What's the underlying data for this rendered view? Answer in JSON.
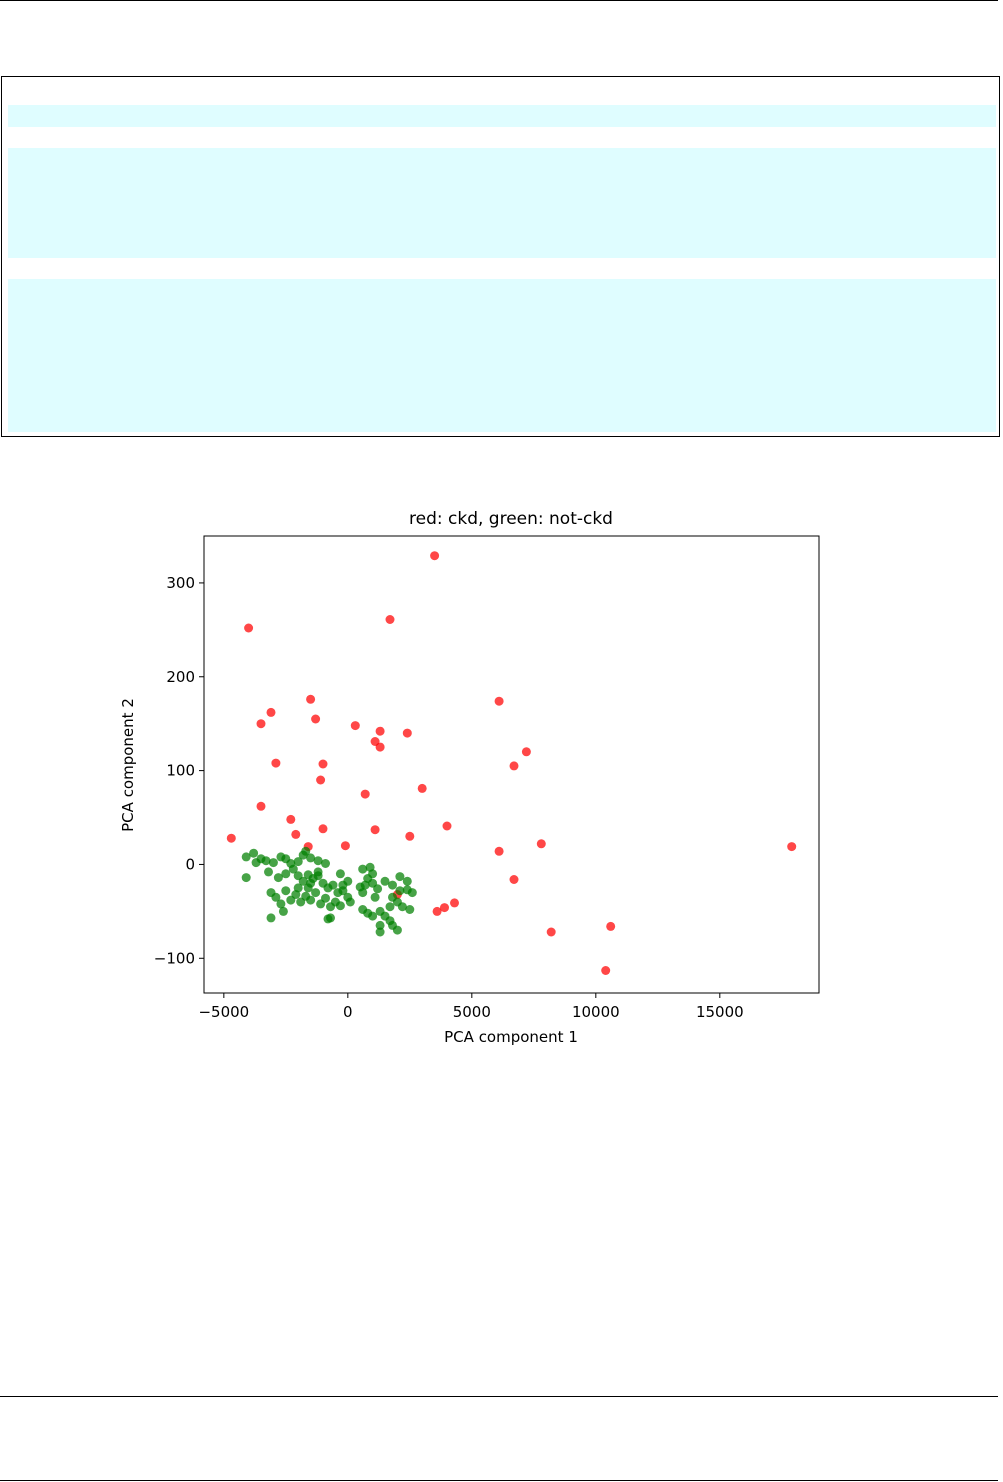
{
  "chart_data": {
    "type": "scatter",
    "title": "red: ckd, green: not-ckd",
    "xlabel": "PCA component 1",
    "ylabel": "PCA component 2",
    "xlim": [
      -5800,
      19000
    ],
    "ylim": [
      -137,
      350
    ],
    "xticks": [
      -5000,
      0,
      5000,
      10000,
      15000
    ],
    "xtick_labels": [
      "−5000",
      "0",
      "5000",
      "10000",
      "15000"
    ],
    "yticks": [
      -100,
      0,
      100,
      200,
      300
    ],
    "ytick_labels": [
      "−100",
      "0",
      "100",
      "200",
      "300"
    ],
    "grid": false,
    "series": [
      {
        "name": "ckd",
        "color": "#ff0000",
        "points": [
          [
            3500,
            329
          ],
          [
            -4000,
            252
          ],
          [
            1700,
            261
          ],
          [
            6100,
            174
          ],
          [
            -1500,
            176
          ],
          [
            -3100,
            162
          ],
          [
            -1300,
            155
          ],
          [
            -3500,
            150
          ],
          [
            300,
            148
          ],
          [
            1300,
            142
          ],
          [
            2400,
            140
          ],
          [
            1100,
            131
          ],
          [
            1300,
            125
          ],
          [
            7200,
            120
          ],
          [
            -2900,
            108
          ],
          [
            -1000,
            107
          ],
          [
            6700,
            105
          ],
          [
            -1100,
            90
          ],
          [
            3000,
            81
          ],
          [
            700,
            75
          ],
          [
            -3500,
            62
          ],
          [
            -2300,
            48
          ],
          [
            4000,
            41
          ],
          [
            -1000,
            38
          ],
          [
            1100,
            37
          ],
          [
            -2100,
            32
          ],
          [
            2500,
            30
          ],
          [
            -4700,
            28
          ],
          [
            7800,
            22
          ],
          [
            17900,
            19
          ],
          [
            -100,
            20
          ],
          [
            -1600,
            19
          ],
          [
            6100,
            14
          ],
          [
            6700,
            -16
          ],
          [
            4300,
            -41
          ],
          [
            3900,
            -46
          ],
          [
            3600,
            -50
          ],
          [
            10600,
            -66
          ],
          [
            8200,
            -72
          ],
          [
            10400,
            -113
          ],
          [
            2000,
            -32
          ]
        ]
      },
      {
        "name": "not-ckd",
        "color": "#008000",
        "points": [
          [
            -4100,
            8
          ],
          [
            -3800,
            12
          ],
          [
            -3500,
            6
          ],
          [
            -3300,
            4
          ],
          [
            -3000,
            2
          ],
          [
            -2700,
            8
          ],
          [
            -2500,
            6
          ],
          [
            -2300,
            1
          ],
          [
            -2000,
            3
          ],
          [
            -1800,
            10
          ],
          [
            -1700,
            14
          ],
          [
            -1500,
            7
          ],
          [
            -1200,
            4
          ],
          [
            -900,
            1
          ],
          [
            -3700,
            2
          ],
          [
            -3200,
            -8
          ],
          [
            -2800,
            -14
          ],
          [
            -2500,
            -10
          ],
          [
            -2200,
            -5
          ],
          [
            -2000,
            -12
          ],
          [
            -1800,
            -18
          ],
          [
            -1600,
            -11
          ],
          [
            -1400,
            -15
          ],
          [
            -1200,
            -8
          ],
          [
            -1000,
            -20
          ],
          [
            -800,
            -25
          ],
          [
            -600,
            -22
          ],
          [
            -400,
            -30
          ],
          [
            -200,
            -28
          ],
          [
            0,
            -35
          ],
          [
            -4100,
            -14
          ],
          [
            -3100,
            -30
          ],
          [
            -2900,
            -35
          ],
          [
            -2700,
            -42
          ],
          [
            -2500,
            -28
          ],
          [
            -2300,
            -38
          ],
          [
            -2100,
            -32
          ],
          [
            -1900,
            -40
          ],
          [
            -1700,
            -34
          ],
          [
            -1500,
            -38
          ],
          [
            -1300,
            -30
          ],
          [
            -1100,
            -42
          ],
          [
            -900,
            -36
          ],
          [
            -700,
            -45
          ],
          [
            -500,
            -40
          ],
          [
            -300,
            -44
          ],
          [
            -2600,
            -50
          ],
          [
            -3100,
            -57
          ],
          [
            -700,
            -57
          ],
          [
            -800,
            -58
          ],
          [
            600,
            -5
          ],
          [
            900,
            -3
          ],
          [
            1000,
            -10
          ],
          [
            800,
            -15
          ],
          [
            700,
            -22
          ],
          [
            1000,
            -20
          ],
          [
            1200,
            -26
          ],
          [
            1500,
            -18
          ],
          [
            1800,
            -22
          ],
          [
            2100,
            -13
          ],
          [
            2400,
            -18
          ],
          [
            1800,
            -35
          ],
          [
            2000,
            -40
          ],
          [
            2400,
            -27
          ],
          [
            2600,
            -30
          ],
          [
            2200,
            -45
          ],
          [
            2500,
            -48
          ],
          [
            600,
            -48
          ],
          [
            800,
            -52
          ],
          [
            1000,
            -55
          ],
          [
            1300,
            -50
          ],
          [
            1500,
            -55
          ],
          [
            1700,
            -60
          ],
          [
            1800,
            -65
          ],
          [
            1300,
            -65
          ],
          [
            1300,
            -72
          ],
          [
            2000,
            -70
          ],
          [
            1700,
            -45
          ],
          [
            -1500,
            -20
          ],
          [
            -2000,
            -25
          ],
          [
            -1200,
            -12
          ],
          [
            -1600,
            -25
          ],
          [
            500,
            -24
          ],
          [
            0,
            -18
          ],
          [
            -300,
            -10
          ],
          [
            100,
            -40
          ],
          [
            -200,
            -22
          ],
          [
            600,
            -30
          ],
          [
            1100,
            -35
          ],
          [
            2100,
            -28
          ]
        ]
      }
    ]
  }
}
